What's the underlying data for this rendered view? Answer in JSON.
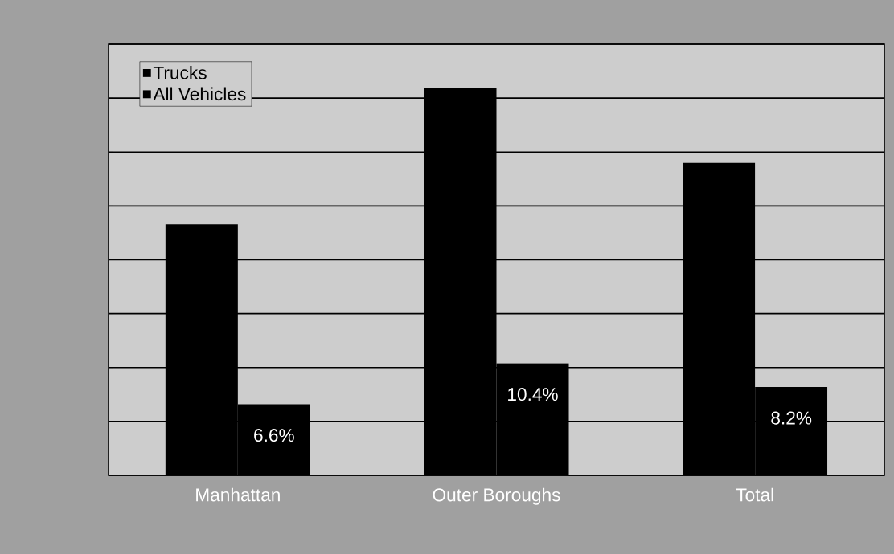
{
  "chart_data": {
    "type": "bar",
    "categories": [
      "Manhattan",
      "Outer Boroughs",
      "Total"
    ],
    "series": [
      {
        "name": "Trucks",
        "color": "#000000",
        "values": [
          23.3,
          35.9,
          29.0
        ]
      },
      {
        "name": "All Vehicles",
        "color": "#000000",
        "values": [
          6.6,
          10.4,
          8.2
        ],
        "value_labels": [
          "6.6%",
          "10.4%",
          "8.2%"
        ]
      }
    ],
    "ylim": [
      0,
      40
    ],
    "yticks": [
      {
        "value": 0,
        "label": null
      },
      {
        "value": 5,
        "label": null
      },
      {
        "value": 10,
        "label": null
      },
      {
        "value": 15,
        "label": null
      },
      {
        "value": 20,
        "label": null
      },
      {
        "value": 25,
        "label": null
      },
      {
        "value": 30,
        "label": null
      },
      {
        "value": 35,
        "label": null
      },
      {
        "value": 40,
        "label": null
      }
    ],
    "grid": "y",
    "legend": "top left",
    "tick_labels": "x"
  }
}
